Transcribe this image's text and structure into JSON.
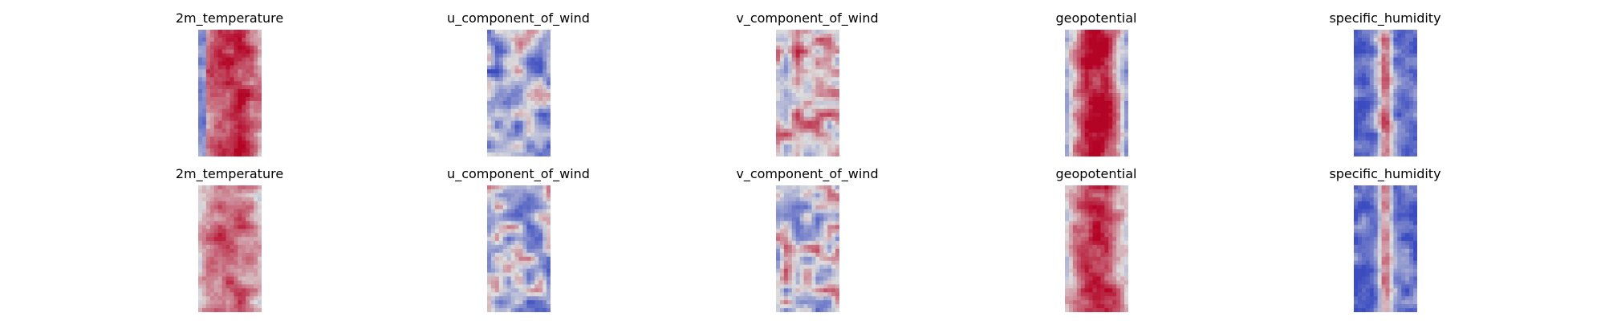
{
  "chart_data": [
    {
      "type": "heatmap",
      "title": "2m_temperature",
      "row": 0,
      "col": 0,
      "colormap": "coolwarm"
    },
    {
      "type": "heatmap",
      "title": "u_component_of_wind",
      "row": 0,
      "col": 1,
      "colormap": "coolwarm"
    },
    {
      "type": "heatmap",
      "title": "v_component_of_wind",
      "row": 0,
      "col": 2,
      "colormap": "coolwarm"
    },
    {
      "type": "heatmap",
      "title": "geopotential",
      "row": 0,
      "col": 3,
      "colormap": "coolwarm"
    },
    {
      "type": "heatmap",
      "title": "specific_humidity",
      "row": 0,
      "col": 4,
      "colormap": "coolwarm"
    },
    {
      "type": "heatmap",
      "title": "2m_temperature",
      "row": 1,
      "col": 0,
      "colormap": "coolwarm"
    },
    {
      "type": "heatmap",
      "title": "u_component_of_wind",
      "row": 1,
      "col": 1,
      "colormap": "coolwarm"
    },
    {
      "type": "heatmap",
      "title": "v_component_of_wind",
      "row": 1,
      "col": 2,
      "colormap": "coolwarm"
    },
    {
      "type": "heatmap",
      "title": "geopotential",
      "row": 1,
      "col": 3,
      "colormap": "coolwarm"
    },
    {
      "type": "heatmap",
      "title": "specific_humidity",
      "row": 1,
      "col": 4,
      "colormap": "coolwarm"
    }
  ],
  "colors": {
    "coolwarm_low": "#3b4cc0",
    "coolwarm_mid": "#dddddd",
    "coolwarm_high": "#b40426"
  }
}
